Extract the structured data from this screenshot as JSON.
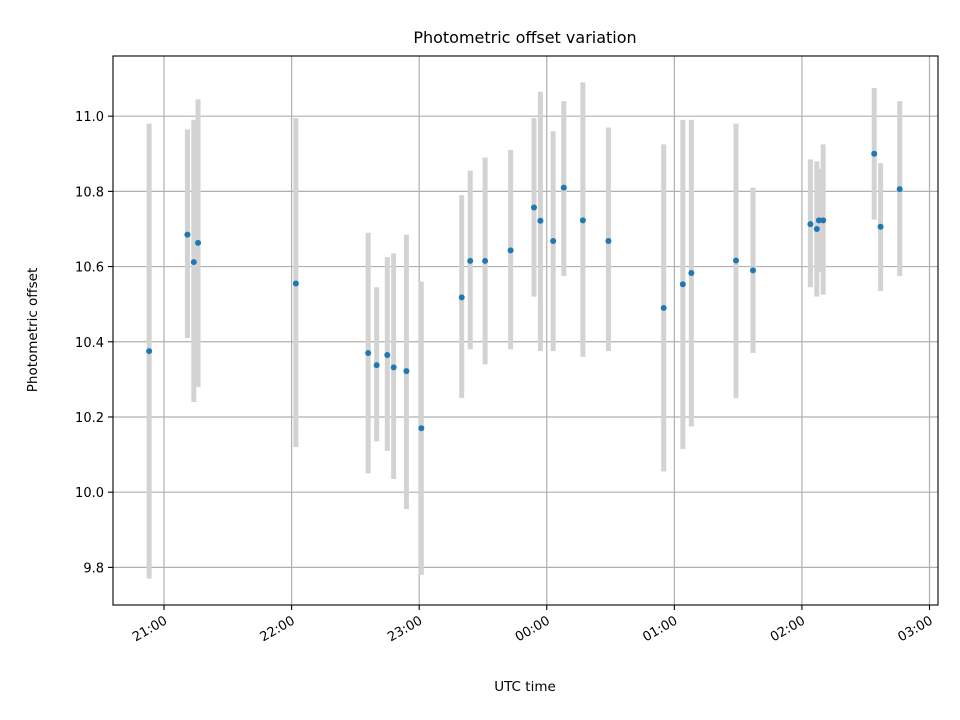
{
  "chart_data": {
    "type": "scatter",
    "title": "Photometric offset variation",
    "xlabel": "UTC time",
    "ylabel": "Photometric offset",
    "xlim": [
      "20:36",
      "27:04"
    ],
    "ylim": [
      9.7,
      11.16
    ],
    "x_ticks": [
      "21:00",
      "22:00",
      "23:00",
      "00:00",
      "01:00",
      "02:00",
      "03:00"
    ],
    "y_ticks": [
      9.8,
      10.0,
      10.2,
      10.4,
      10.6,
      10.8,
      11.0
    ],
    "grid": true,
    "marker_color": "#1f77b4",
    "errorbar_color": "#d3d3d3",
    "points": [
      {
        "t": "20:53",
        "y": 10.375,
        "low": 9.77,
        "high": 10.98
      },
      {
        "t": "21:11",
        "y": 10.685,
        "low": 10.41,
        "high": 10.965
      },
      {
        "t": "21:14",
        "y": 10.612,
        "low": 10.24,
        "high": 10.99
      },
      {
        "t": "21:16",
        "y": 10.663,
        "low": 10.28,
        "high": 11.045
      },
      {
        "t": "22:02",
        "y": 10.555,
        "low": 10.12,
        "high": 10.995
      },
      {
        "t": "22:36",
        "y": 10.37,
        "low": 10.05,
        "high": 10.69
      },
      {
        "t": "22:40",
        "y": 10.338,
        "low": 10.135,
        "high": 10.545
      },
      {
        "t": "22:45",
        "y": 10.365,
        "low": 10.11,
        "high": 10.625
      },
      {
        "t": "22:48",
        "y": 10.332,
        "low": 10.035,
        "high": 10.635
      },
      {
        "t": "22:54",
        "y": 10.322,
        "low": 9.955,
        "high": 10.685
      },
      {
        "t": "23:01",
        "y": 10.17,
        "low": 9.78,
        "high": 10.56
      },
      {
        "t": "23:20",
        "y": 10.518,
        "low": 10.25,
        "high": 10.79
      },
      {
        "t": "23:24",
        "y": 10.615,
        "low": 10.38,
        "high": 10.855
      },
      {
        "t": "23:31",
        "y": 10.615,
        "low": 10.34,
        "high": 10.89
      },
      {
        "t": "23:43",
        "y": 10.643,
        "low": 10.38,
        "high": 10.91
      },
      {
        "t": "23:54",
        "y": 10.757,
        "low": 10.52,
        "high": 10.995
      },
      {
        "t": "23:57",
        "y": 10.722,
        "low": 10.375,
        "high": 11.065
      },
      {
        "t": "24:03",
        "y": 10.668,
        "low": 10.375,
        "high": 10.96
      },
      {
        "t": "24:08",
        "y": 10.81,
        "low": 10.575,
        "high": 11.04
      },
      {
        "t": "24:17",
        "y": 10.723,
        "low": 10.36,
        "high": 11.09
      },
      {
        "t": "24:29",
        "y": 10.668,
        "low": 10.375,
        "high": 10.97
      },
      {
        "t": "24:55",
        "y": 10.49,
        "low": 10.055,
        "high": 10.925
      },
      {
        "t": "25:04",
        "y": 10.553,
        "low": 10.115,
        "high": 10.99
      },
      {
        "t": "25:08",
        "y": 10.583,
        "low": 10.175,
        "high": 10.99
      },
      {
        "t": "25:29",
        "y": 10.616,
        "low": 10.25,
        "high": 10.98
      },
      {
        "t": "25:37",
        "y": 10.59,
        "low": 10.37,
        "high": 10.81
      },
      {
        "t": "26:04",
        "y": 10.713,
        "low": 10.545,
        "high": 10.885
      },
      {
        "t": "26:07",
        "y": 10.7,
        "low": 10.52,
        "high": 10.88
      },
      {
        "t": "26:08",
        "y": 10.723,
        "low": 10.585,
        "high": 10.86
      },
      {
        "t": "26:10",
        "y": 10.723,
        "low": 10.525,
        "high": 10.925
      },
      {
        "t": "26:34",
        "y": 10.9,
        "low": 10.725,
        "high": 11.075
      },
      {
        "t": "26:37",
        "y": 10.706,
        "low": 10.535,
        "high": 10.875
      },
      {
        "t": "26:46",
        "y": 10.806,
        "low": 10.575,
        "high": 11.04
      }
    ]
  }
}
